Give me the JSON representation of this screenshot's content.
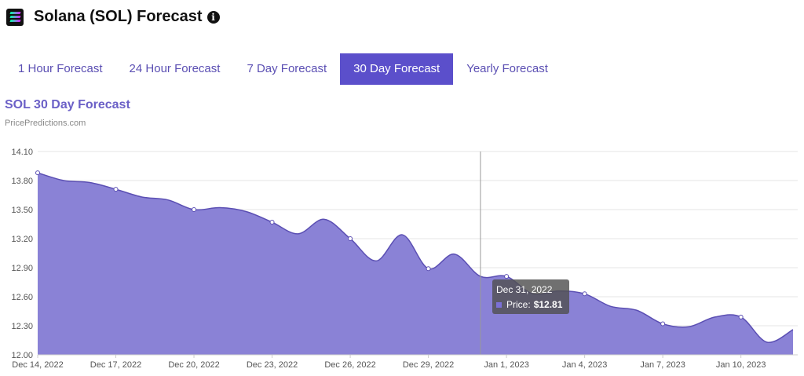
{
  "header": {
    "title": "Solana (SOL) Forecast",
    "icon": "solana-logo-icon",
    "info_icon": "info-icon"
  },
  "tabs": [
    {
      "label": "1 Hour Forecast",
      "active": false
    },
    {
      "label": "24 Hour Forecast",
      "active": false
    },
    {
      "label": "7 Day Forecast",
      "active": false
    },
    {
      "label": "30 Day Forecast",
      "active": true
    },
    {
      "label": "Yearly Forecast",
      "active": false
    }
  ],
  "colors": {
    "accent": "#5b4fcb",
    "area_fill": "#8a82d6",
    "line": "#5b4fb3"
  },
  "tooltip": {
    "date": "Dec 31, 2022",
    "label": "Price:",
    "value": "$12.81"
  },
  "chart_data": {
    "type": "area",
    "title": "SOL 30 Day Forecast",
    "subtitle": "PricePredictions.com",
    "xlabel": "",
    "ylabel": "",
    "ylim": [
      12.0,
      14.1
    ],
    "yticks": [
      "12.00",
      "12.30",
      "12.60",
      "12.90",
      "13.20",
      "13.50",
      "13.80",
      "14.10"
    ],
    "xticks": [
      "Dec 14, 2022",
      "Dec 17, 2022",
      "Dec 20, 2022",
      "Dec 23, 2022",
      "Dec 26, 2022",
      "Dec 29, 2022",
      "Jan 1, 2023",
      "Jan 4, 2023",
      "Jan 7, 2023",
      "Jan 10, 2023"
    ],
    "grid": true,
    "highlighted_date": "Dec 31, 2022",
    "series": [
      {
        "name": "Price",
        "x": [
          "Dec 14, 2022",
          "Dec 15, 2022",
          "Dec 16, 2022",
          "Dec 17, 2022",
          "Dec 18, 2022",
          "Dec 19, 2022",
          "Dec 20, 2022",
          "Dec 21, 2022",
          "Dec 22, 2022",
          "Dec 23, 2022",
          "Dec 24, 2022",
          "Dec 25, 2022",
          "Dec 26, 2022",
          "Dec 27, 2022",
          "Dec 28, 2022",
          "Dec 29, 2022",
          "Dec 30, 2022",
          "Dec 31, 2022",
          "Jan 1, 2023",
          "Jan 2, 2023",
          "Jan 3, 2023",
          "Jan 4, 2023",
          "Jan 5, 2023",
          "Jan 6, 2023",
          "Jan 7, 2023",
          "Jan 8, 2023",
          "Jan 9, 2023",
          "Jan 10, 2023",
          "Jan 11, 2023",
          "Jan 12, 2023"
        ],
        "values": [
          13.88,
          13.8,
          13.78,
          13.71,
          13.63,
          13.6,
          13.5,
          13.52,
          13.48,
          13.37,
          13.25,
          13.4,
          13.2,
          12.97,
          13.24,
          12.89,
          13.04,
          12.81,
          12.81,
          12.63,
          12.66,
          12.63,
          12.5,
          12.46,
          12.32,
          12.29,
          12.39,
          12.39,
          12.13,
          12.26
        ]
      }
    ]
  }
}
